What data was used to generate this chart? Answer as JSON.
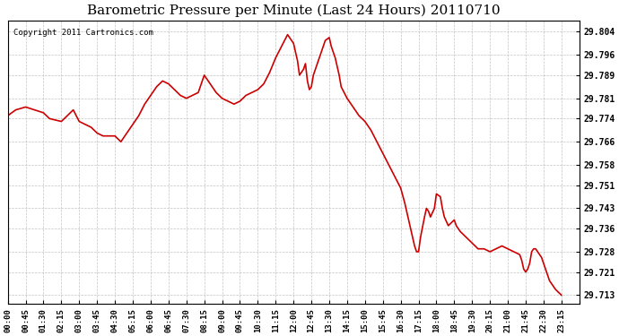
{
  "title": "Barometric Pressure per Minute (Last 24 Hours) 20110710",
  "copyright": "Copyright 2011 Cartronics.com",
  "line_color": "#cc0000",
  "bg_color": "#ffffff",
  "plot_bg_color": "#ffffff",
  "grid_color": "#aaaaaa",
  "yticks": [
    29.804,
    29.796,
    29.789,
    29.781,
    29.774,
    29.766,
    29.758,
    29.751,
    29.743,
    29.736,
    29.728,
    29.721,
    29.713
  ],
  "ylim": [
    29.71,
    29.808
  ],
  "xtick_labels": [
    "00:00",
    "00:45",
    "01:30",
    "02:15",
    "03:00",
    "03:45",
    "04:30",
    "05:15",
    "06:00",
    "06:45",
    "07:30",
    "08:15",
    "09:00",
    "09:45",
    "10:30",
    "11:15",
    "12:00",
    "12:45",
    "13:30",
    "14:15",
    "15:00",
    "15:45",
    "16:30",
    "17:15",
    "18:00",
    "18:45",
    "19:30",
    "20:15",
    "21:00",
    "21:45",
    "22:30",
    "23:15"
  ],
  "t_points": [
    [
      0,
      29.775
    ],
    [
      20,
      29.777
    ],
    [
      45,
      29.778
    ],
    [
      90,
      29.776
    ],
    [
      105,
      29.774
    ],
    [
      135,
      29.773
    ],
    [
      150,
      29.775
    ],
    [
      165,
      29.777
    ],
    [
      180,
      29.773
    ],
    [
      210,
      29.771
    ],
    [
      225,
      29.769
    ],
    [
      240,
      29.768
    ],
    [
      270,
      29.768
    ],
    [
      285,
      29.766
    ],
    [
      300,
      29.769
    ],
    [
      315,
      29.772
    ],
    [
      330,
      29.775
    ],
    [
      345,
      29.779
    ],
    [
      360,
      29.782
    ],
    [
      375,
      29.785
    ],
    [
      390,
      29.787
    ],
    [
      405,
      29.786
    ],
    [
      420,
      29.784
    ],
    [
      435,
      29.782
    ],
    [
      450,
      29.781
    ],
    [
      465,
      29.782
    ],
    [
      480,
      29.783
    ],
    [
      495,
      29.789
    ],
    [
      510,
      29.786
    ],
    [
      525,
      29.783
    ],
    [
      540,
      29.781
    ],
    [
      555,
      29.78
    ],
    [
      570,
      29.779
    ],
    [
      585,
      29.78
    ],
    [
      600,
      29.782
    ],
    [
      615,
      29.783
    ],
    [
      630,
      29.784
    ],
    [
      645,
      29.786
    ],
    [
      660,
      29.79
    ],
    [
      675,
      29.795
    ],
    [
      690,
      29.799
    ],
    [
      705,
      29.803
    ],
    [
      720,
      29.8
    ],
    [
      730,
      29.794
    ],
    [
      735,
      29.789
    ],
    [
      745,
      29.791
    ],
    [
      750,
      29.793
    ],
    [
      755,
      29.787
    ],
    [
      760,
      29.784
    ],
    [
      765,
      29.785
    ],
    [
      770,
      29.789
    ],
    [
      780,
      29.793
    ],
    [
      790,
      29.797
    ],
    [
      800,
      29.801
    ],
    [
      810,
      29.802
    ],
    [
      815,
      29.799
    ],
    [
      825,
      29.795
    ],
    [
      835,
      29.789
    ],
    [
      840,
      29.785
    ],
    [
      855,
      29.781
    ],
    [
      870,
      29.778
    ],
    [
      885,
      29.775
    ],
    [
      900,
      29.773
    ],
    [
      915,
      29.77
    ],
    [
      930,
      29.766
    ],
    [
      945,
      29.762
    ],
    [
      960,
      29.758
    ],
    [
      975,
      29.754
    ],
    [
      990,
      29.75
    ],
    [
      1000,
      29.745
    ],
    [
      1005,
      29.742
    ],
    [
      1010,
      29.739
    ],
    [
      1015,
      29.736
    ],
    [
      1020,
      29.733
    ],
    [
      1025,
      29.73
    ],
    [
      1030,
      29.728
    ],
    [
      1035,
      29.728
    ],
    [
      1040,
      29.733
    ],
    [
      1050,
      29.74
    ],
    [
      1055,
      29.743
    ],
    [
      1060,
      29.742
    ],
    [
      1065,
      29.74
    ],
    [
      1075,
      29.743
    ],
    [
      1080,
      29.748
    ],
    [
      1090,
      29.747
    ],
    [
      1095,
      29.743
    ],
    [
      1100,
      29.74
    ],
    [
      1110,
      29.737
    ],
    [
      1125,
      29.739
    ],
    [
      1130,
      29.737
    ],
    [
      1140,
      29.735
    ],
    [
      1155,
      29.733
    ],
    [
      1170,
      29.731
    ],
    [
      1185,
      29.729
    ],
    [
      1200,
      29.729
    ],
    [
      1215,
      29.728
    ],
    [
      1230,
      29.729
    ],
    [
      1245,
      29.73
    ],
    [
      1260,
      29.729
    ],
    [
      1275,
      29.728
    ],
    [
      1290,
      29.727
    ],
    [
      1295,
      29.725
    ],
    [
      1300,
      29.722
    ],
    [
      1305,
      29.721
    ],
    [
      1310,
      29.722
    ],
    [
      1315,
      29.724
    ],
    [
      1320,
      29.728
    ],
    [
      1325,
      29.729
    ],
    [
      1330,
      29.729
    ],
    [
      1335,
      29.728
    ],
    [
      1340,
      29.727
    ],
    [
      1345,
      29.726
    ],
    [
      1350,
      29.724
    ],
    [
      1355,
      29.722
    ],
    [
      1360,
      29.72
    ],
    [
      1365,
      29.718
    ],
    [
      1380,
      29.715
    ],
    [
      1395,
      29.713
    ]
  ]
}
